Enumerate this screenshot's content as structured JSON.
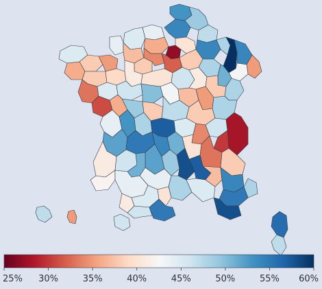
{
  "colorbar": {
    "stops": [
      "#67001f",
      "#b2182b",
      "#d6604d",
      "#f4a582",
      "#fddbc7",
      "#f7f7f7",
      "#d1e5f0",
      "#92c5de",
      "#4393c3",
      "#2166ac",
      "#053061"
    ],
    "min": 25,
    "max": 60,
    "ticks": [
      "25%",
      "30%",
      "35%",
      "40%",
      "45%",
      "50%",
      "55%",
      "60%"
    ],
    "tick_values": [
      25,
      30,
      35,
      40,
      45,
      50,
      55,
      60
    ]
  },
  "departments": [
    {
      "name": "northern-tip",
      "value": 53
    },
    {
      "name": "north-coast",
      "value": 49
    },
    {
      "name": "picardy-west",
      "value": 44
    },
    {
      "name": "picardy-east",
      "value": 54
    },
    {
      "name": "ardennes",
      "value": 47
    },
    {
      "name": "channel-coast",
      "value": 45
    },
    {
      "name": "oise",
      "value": 36
    },
    {
      "name": "paris-core",
      "value": 27
    },
    {
      "name": "aisne-south",
      "value": 40
    },
    {
      "name": "marne",
      "value": 54
    },
    {
      "name": "meuse",
      "value": 48
    },
    {
      "name": "alsace-north",
      "value": 60
    },
    {
      "name": "moselle",
      "value": 54
    },
    {
      "name": "alsace-east",
      "value": 35
    },
    {
      "name": "vosges-south",
      "value": 43
    },
    {
      "name": "brittany-tip",
      "value": 45
    },
    {
      "name": "brittany-center",
      "value": 38
    },
    {
      "name": "brittany-east",
      "value": 35
    },
    {
      "name": "cotentin",
      "value": 44
    },
    {
      "name": "calvados",
      "value": 37
    },
    {
      "name": "orne",
      "value": 38
    },
    {
      "name": "eure",
      "value": 34
    },
    {
      "name": "essonne-south",
      "value": 32
    },
    {
      "name": "seine-marne",
      "value": 38
    },
    {
      "name": "aube",
      "value": 48
    },
    {
      "name": "haute-marne",
      "value": 51
    },
    {
      "name": "morbihan",
      "value": 36
    },
    {
      "name": "ille-vilaine",
      "value": 38
    },
    {
      "name": "mayenne",
      "value": 39
    },
    {
      "name": "sarthe",
      "value": 41
    },
    {
      "name": "loiret",
      "value": 40
    },
    {
      "name": "yonne",
      "value": 46
    },
    {
      "name": "cote-or",
      "value": 41
    },
    {
      "name": "haute-saone",
      "value": 38
    },
    {
      "name": "doubs",
      "value": 48
    },
    {
      "name": "loire-atlantique",
      "value": 33
    },
    {
      "name": "maine-loire",
      "value": 45
    },
    {
      "name": "indre-loire",
      "value": 46
    },
    {
      "name": "cher",
      "value": 50
    },
    {
      "name": "nievre",
      "value": 43
    },
    {
      "name": "saone-loire",
      "value": 37
    },
    {
      "name": "jura",
      "value": 35
    },
    {
      "name": "vendee",
      "value": 31
    },
    {
      "name": "deux-sevres",
      "value": 36
    },
    {
      "name": "vienne",
      "value": 49
    },
    {
      "name": "indre",
      "value": 38
    },
    {
      "name": "allier",
      "value": 47
    },
    {
      "name": "ain",
      "value": 38
    },
    {
      "name": "haute-savoie",
      "value": 48
    },
    {
      "name": "charente-maritime",
      "value": 44
    },
    {
      "name": "charente",
      "value": 53
    },
    {
      "name": "haute-vienne",
      "value": 48
    },
    {
      "name": "creuse",
      "value": 57
    },
    {
      "name": "puy-dome",
      "value": 45
    },
    {
      "name": "loire",
      "value": 34
    },
    {
      "name": "rhone",
      "value": 46
    },
    {
      "name": "savoie",
      "value": 28
    },
    {
      "name": "isere",
      "value": 30
    },
    {
      "name": "gironde",
      "value": 52
    },
    {
      "name": "dordogne",
      "value": 55
    },
    {
      "name": "correze",
      "value": 54
    },
    {
      "name": "cantal",
      "value": 51
    },
    {
      "name": "haute-loire",
      "value": 40
    },
    {
      "name": "drome",
      "value": 33
    },
    {
      "name": "hautes-alpes",
      "value": 38
    },
    {
      "name": "lot",
      "value": 52
    },
    {
      "name": "aveyron",
      "value": 49
    },
    {
      "name": "lozere",
      "value": 58
    },
    {
      "name": "ardeche",
      "value": 57
    },
    {
      "name": "vaucluse",
      "value": 37
    },
    {
      "name": "alpes-haute-provence",
      "value": 54
    },
    {
      "name": "landes",
      "value": 41
    },
    {
      "name": "lot-garonne",
      "value": 46
    },
    {
      "name": "tarn-garonne",
      "value": 51
    },
    {
      "name": "tarn",
      "value": 44
    },
    {
      "name": "herault",
      "value": 48
    },
    {
      "name": "gard",
      "value": 45
    },
    {
      "name": "bouches-rhone",
      "value": 55
    },
    {
      "name": "var",
      "value": 58
    },
    {
      "name": "alpes-maritimes",
      "value": 48
    },
    {
      "name": "pyrenees-atlantiques",
      "value": 42
    },
    {
      "name": "gers",
      "value": 44
    },
    {
      "name": "haute-garonne",
      "value": 41
    },
    {
      "name": "ariege",
      "value": 45
    },
    {
      "name": "aude",
      "value": 40
    },
    {
      "name": "pyrenees-orientales",
      "value": 55
    },
    {
      "name": "hautes-pyrenees",
      "value": 46
    },
    {
      "name": "corse-nord",
      "value": 56
    },
    {
      "name": "corse-sud",
      "value": 47
    },
    {
      "name": "island-west",
      "value": 46
    },
    {
      "name": "island-red",
      "value": 35
    },
    {
      "name": "island-small",
      "value": 47
    }
  ]
}
